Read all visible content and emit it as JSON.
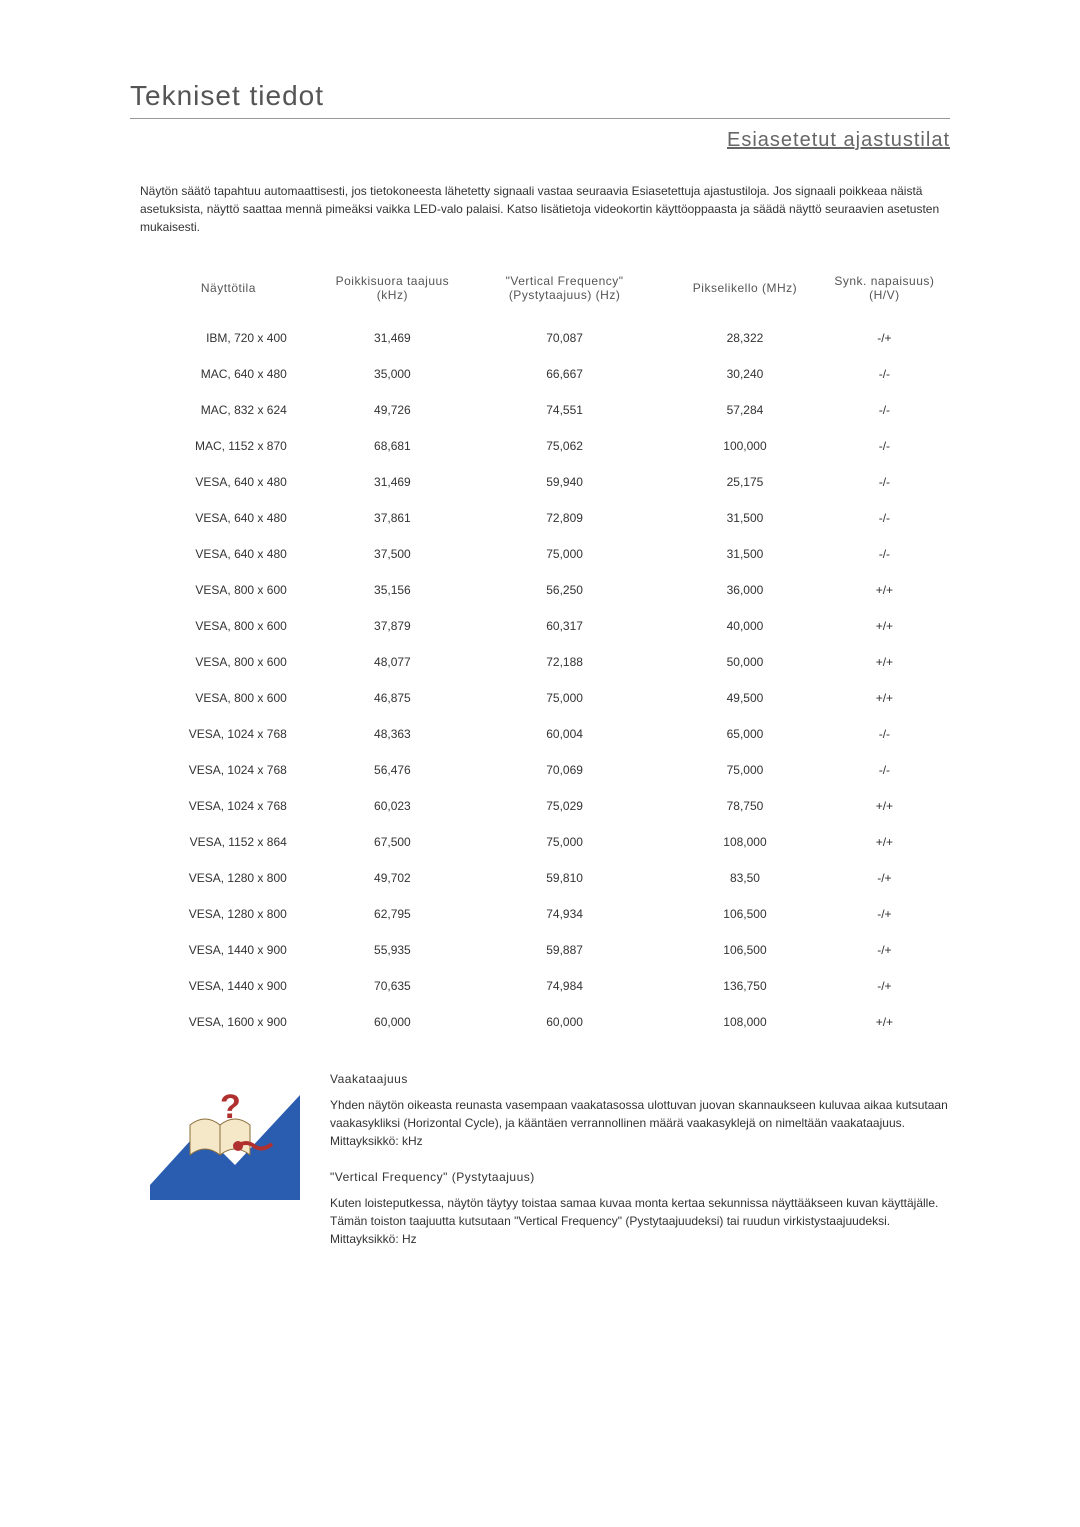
{
  "title": "Tekniset tiedot",
  "subtitle": "Esiasetetut ajastustilat",
  "intro": "Näytön säätö tapahtuu automaattisesti, jos tietokoneesta lähetetty signaali vastaa seuraavia Esiasetettuja ajastustiloja. Jos signaali poikkeaa näistä asetuksista, näyttö saattaa mennä pimeäksi vaikka LED-valo palaisi. Katso lisätietoja videokortin käyttöoppaasta ja säädä näyttö seuraavien asetusten mukaisesti.",
  "table": {
    "headers": {
      "mode": "Näyttötila",
      "hfreq": "Poikkisuora taajuus (kHz)",
      "vfreq": "\"Vertical Frequency\" (Pystytaajuus) (Hz)",
      "pixel": "Pikselikello (MHz)",
      "sync": "Synk. napaisuus) (H/V)"
    },
    "rows": [
      {
        "mode": "IBM, 720 x 400",
        "h": "31,469",
        "v": "70,087",
        "p": "28,322",
        "s": "-/+"
      },
      {
        "mode": "MAC, 640 x 480",
        "h": "35,000",
        "v": "66,667",
        "p": "30,240",
        "s": "-/-"
      },
      {
        "mode": "MAC, 832 x 624",
        "h": "49,726",
        "v": "74,551",
        "p": "57,284",
        "s": "-/-"
      },
      {
        "mode": "MAC, 1152 x 870",
        "h": "68,681",
        "v": "75,062",
        "p": "100,000",
        "s": "-/-"
      },
      {
        "mode": "VESA, 640 x 480",
        "h": "31,469",
        "v": "59,940",
        "p": "25,175",
        "s": "-/-"
      },
      {
        "mode": "VESA, 640 x 480",
        "h": "37,861",
        "v": "72,809",
        "p": "31,500",
        "s": "-/-"
      },
      {
        "mode": "VESA, 640 x 480",
        "h": "37,500",
        "v": "75,000",
        "p": "31,500",
        "s": "-/-"
      },
      {
        "mode": "VESA, 800 x 600",
        "h": "35,156",
        "v": "56,250",
        "p": "36,000",
        "s": "+/+"
      },
      {
        "mode": "VESA, 800 x 600",
        "h": "37,879",
        "v": "60,317",
        "p": "40,000",
        "s": "+/+"
      },
      {
        "mode": "VESA, 800 x 600",
        "h": "48,077",
        "v": "72,188",
        "p": "50,000",
        "s": "+/+"
      },
      {
        "mode": "VESA, 800 x 600",
        "h": "46,875",
        "v": "75,000",
        "p": "49,500",
        "s": "+/+"
      },
      {
        "mode": "VESA, 1024 x 768",
        "h": "48,363",
        "v": "60,004",
        "p": "65,000",
        "s": "-/-"
      },
      {
        "mode": "VESA, 1024 x 768",
        "h": "56,476",
        "v": "70,069",
        "p": "75,000",
        "s": "-/-"
      },
      {
        "mode": "VESA, 1024 x 768",
        "h": "60,023",
        "v": "75,029",
        "p": "78,750",
        "s": "+/+"
      },
      {
        "mode": "VESA, 1152 x 864",
        "h": "67,500",
        "v": "75,000",
        "p": "108,000",
        "s": "+/+"
      },
      {
        "mode": "VESA, 1280 x 800",
        "h": "49,702",
        "v": "59,810",
        "p": "83,50",
        "s": "-/+"
      },
      {
        "mode": "VESA, 1280 x 800",
        "h": "62,795",
        "v": "74,934",
        "p": "106,500",
        "s": "-/+"
      },
      {
        "mode": "VESA, 1440 x 900",
        "h": "55,935",
        "v": "59,887",
        "p": "106,500",
        "s": "-/+"
      },
      {
        "mode": "VESA, 1440 x 900",
        "h": "70,635",
        "v": "74,984",
        "p": "136,750",
        "s": "-/+"
      },
      {
        "mode": "VESA, 1600 x 900",
        "h": "60,000",
        "v": "60,000",
        "p": "108,000",
        "s": "+/+"
      }
    ]
  },
  "definitions": {
    "h_title": "Vaakataajuus",
    "h_body": "Yhden näytön oikeasta reunasta vasempaan vaakatasossa ulottuvan juovan skannaukseen kuluvaa aikaa kutsutaan vaakasykliksi (Horizontal Cycle), ja kääntäen verrannollinen määrä vaakasyklejä on nimeltään vaakataajuus. Mittayksikkö: kHz",
    "v_title": "\"Vertical Frequency\" (Pystytaajuus)",
    "v_body": "Kuten loisteputkessa, näytön täytyy toistaa samaa kuvaa monta kertaa sekunnissa näyttääkseen kuvan käyttäjälle. Tämän toiston taajuutta kutsutaan \"Vertical Frequency\" (Pystytaajuudeksi) tai ruudun virkistystaajuudeksi. Mittayksikkö: Hz"
  },
  "icon_colors": {
    "blue": "#2a5db0",
    "red": "#b03030",
    "page": "#f5e8c8"
  }
}
